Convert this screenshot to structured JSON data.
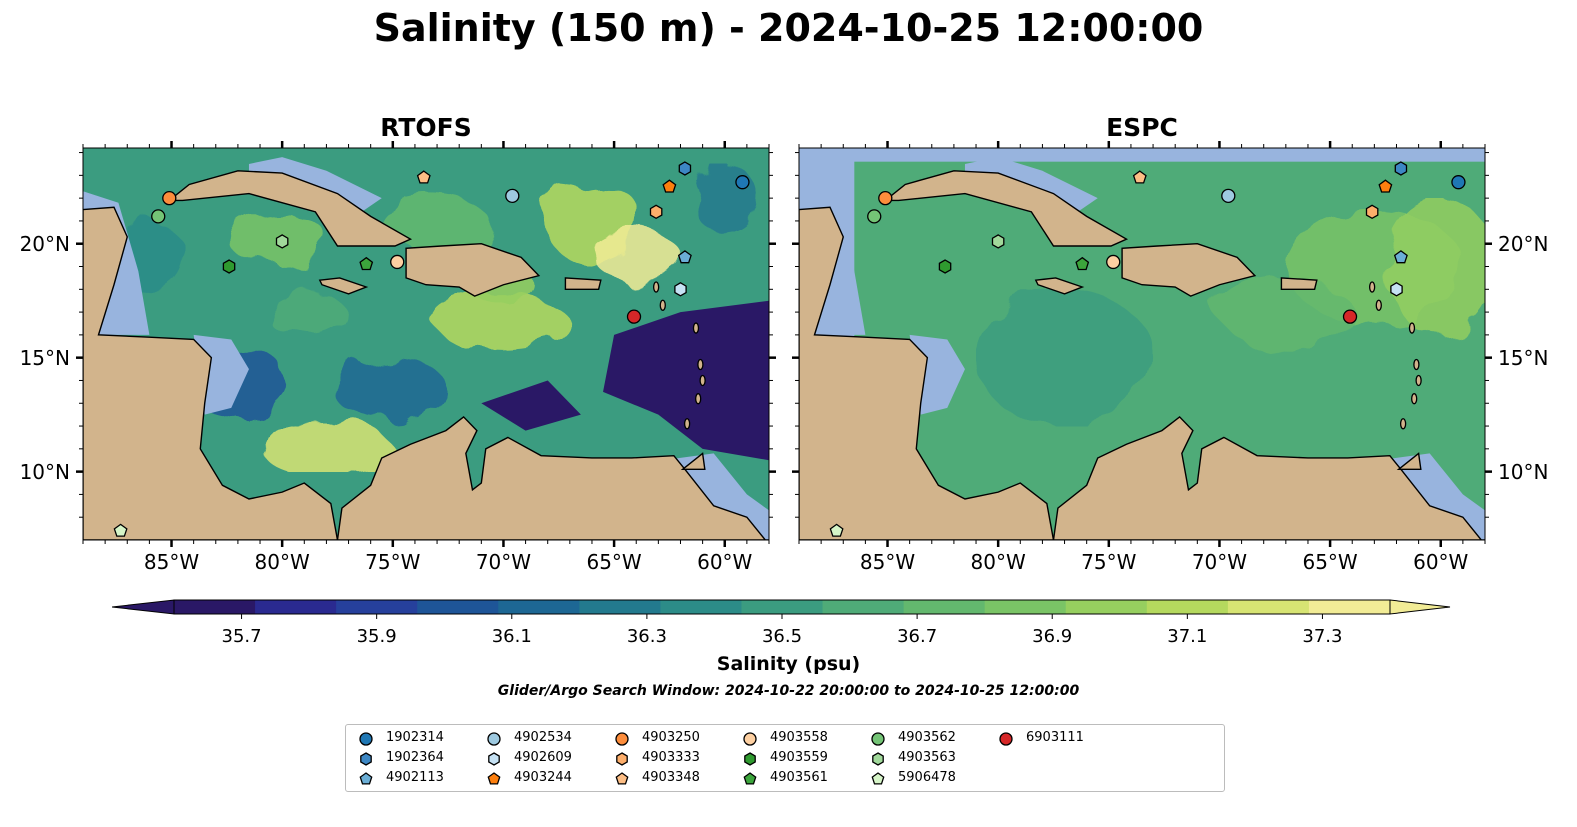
{
  "title": "Salinity (150 m) - 2024-10-25 12:00:00",
  "panels": [
    {
      "id": "rtofs",
      "title": "RTOFS"
    },
    {
      "id": "espc",
      "title": "ESPC"
    }
  ],
  "map": {
    "lon_range": [
      -89,
      -58
    ],
    "lat_range": [
      7,
      24.2
    ],
    "lon_ticks": [
      -85,
      -80,
      -75,
      -70,
      -65,
      -60
    ],
    "lat_ticks": [
      20,
      15,
      10
    ],
    "lon_tick_labels": [
      "85°W",
      "80°W",
      "75°W",
      "70°W",
      "65°W",
      "60°W"
    ],
    "lat_tick_labels": [
      "20°N",
      "15°N",
      "10°N"
    ],
    "land_color": "#d2b48c",
    "shelf_color": "#98b4de"
  },
  "chart_data": {
    "type": "heatmap",
    "colorbar": {
      "label": "Salinity (psu)",
      "vmin": 35.6,
      "vmax": 37.4,
      "step": 0.1,
      "ticks": [
        "35.7",
        "35.9",
        "36.1",
        "36.3",
        "36.5",
        "36.7",
        "36.9",
        "37.1",
        "37.3"
      ],
      "colors": [
        "#2a1866",
        "#2a2a90",
        "#26409c",
        "#1e5598",
        "#1d6794",
        "#237a8e",
        "#2c8c88",
        "#3b9c80",
        "#4fab78",
        "#63b86e",
        "#7ac466",
        "#96cf5f",
        "#b5d95e",
        "#d7e473",
        "#f2ec96"
      ],
      "extend": "both"
    },
    "floats": [
      {
        "id": "1902314",
        "marker": "circle",
        "color": "#1f77b4",
        "lon": -59.2,
        "lat": 22.7
      },
      {
        "id": "1902364",
        "marker": "hexagon",
        "color": "#3d87c4",
        "lon": -61.8,
        "lat": 23.3
      },
      {
        "id": "4902113",
        "marker": "pentagon",
        "color": "#6baed6",
        "lon": -61.8,
        "lat": 19.4
      },
      {
        "id": "4902534",
        "marker": "circle",
        "color": "#9ecae1",
        "lon": -69.6,
        "lat": 22.1
      },
      {
        "id": "4902609",
        "marker": "hexagon",
        "color": "#c6e2f4",
        "lon": -62.0,
        "lat": 18.0
      },
      {
        "id": "4903244",
        "marker": "pentagon",
        "color": "#fd7f0e",
        "lon": -62.5,
        "lat": 22.5
      },
      {
        "id": "4903250",
        "marker": "circle",
        "color": "#fd8d3c",
        "lon": -85.1,
        "lat": 22.0
      },
      {
        "id": "4903333",
        "marker": "hexagon",
        "color": "#fdae6b",
        "lon": -63.1,
        "lat": 21.4
      },
      {
        "id": "4903348",
        "marker": "pentagon",
        "color": "#fdbe85",
        "lon": -73.6,
        "lat": 22.9
      },
      {
        "id": "4903558",
        "marker": "circle",
        "color": "#fdd0a2",
        "lon": -74.8,
        "lat": 19.2
      },
      {
        "id": "4903559",
        "marker": "hexagon",
        "color": "#2f9a2f",
        "lon": -82.4,
        "lat": 19.0
      },
      {
        "id": "4903561",
        "marker": "pentagon",
        "color": "#3ca53c",
        "lon": -76.2,
        "lat": 19.1
      },
      {
        "id": "4903562",
        "marker": "circle",
        "color": "#74c476",
        "lon": -85.6,
        "lat": 21.2
      },
      {
        "id": "4903563",
        "marker": "hexagon",
        "color": "#a1d99b",
        "lon": -80.0,
        "lat": 20.1
      },
      {
        "id": "5906478",
        "marker": "pentagon",
        "color": "#d6f5c8",
        "lon": -87.3,
        "lat": 7.4
      },
      {
        "id": "6903111",
        "marker": "circle",
        "color": "#d62728",
        "lon": -64.1,
        "lat": 16.8
      }
    ]
  },
  "search_window": "Glider/Argo Search Window: 2024-10-22 20:00:00 to 2024-10-25 12:00:00"
}
